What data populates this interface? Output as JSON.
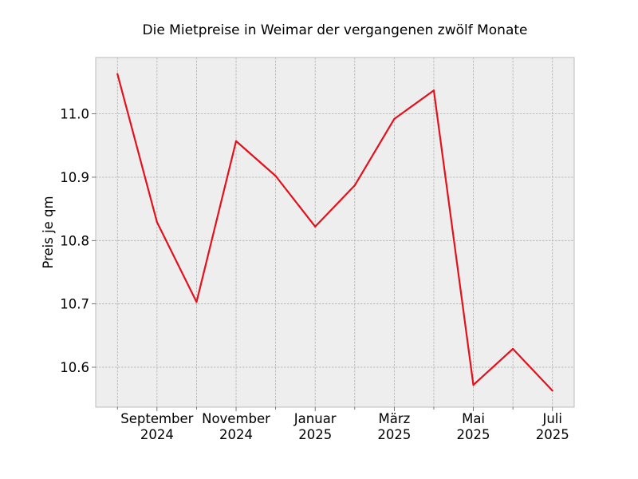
{
  "chart_data": {
    "type": "line",
    "title": "Die Mietpreise in Weimar der vergangenen zwölf Monate",
    "xlabel": "",
    "ylabel": "Preis je qm",
    "x": [
      "2024-08",
      "2024-09",
      "2024-10",
      "2024-11",
      "2024-12",
      "2025-01",
      "2025-02",
      "2025-03",
      "2025-04",
      "2025-05",
      "2025-06",
      "2025-07"
    ],
    "series": [
      {
        "values": [
          11.063,
          10.829,
          10.703,
          10.957,
          10.902,
          10.822,
          10.887,
          10.992,
          11.037,
          10.572,
          10.629,
          10.563
        ],
        "color": "#e3111c"
      }
    ],
    "ylim": [
      10.537,
      11.089
    ],
    "yticks": [
      10.6,
      10.7,
      10.8,
      10.9,
      11.0
    ],
    "ytick_labels": [
      "10.6",
      "10.7",
      "10.8",
      "10.9",
      "11.0"
    ],
    "xticks": [
      {
        "x": "2024-09",
        "month": "September",
        "year": "2024"
      },
      {
        "x": "2024-11",
        "month": "November",
        "year": "2024"
      },
      {
        "x": "2025-01",
        "month": "Januar",
        "year": "2025"
      },
      {
        "x": "2025-03",
        "month": "März",
        "year": "2025"
      },
      {
        "x": "2025-05",
        "month": "Mai",
        "year": "2025"
      },
      {
        "x": "2025-07",
        "month": "Juli",
        "year": "2025"
      }
    ],
    "grid": true,
    "background_color": "#eeeeee",
    "grid_color": "#b0b0b0"
  }
}
